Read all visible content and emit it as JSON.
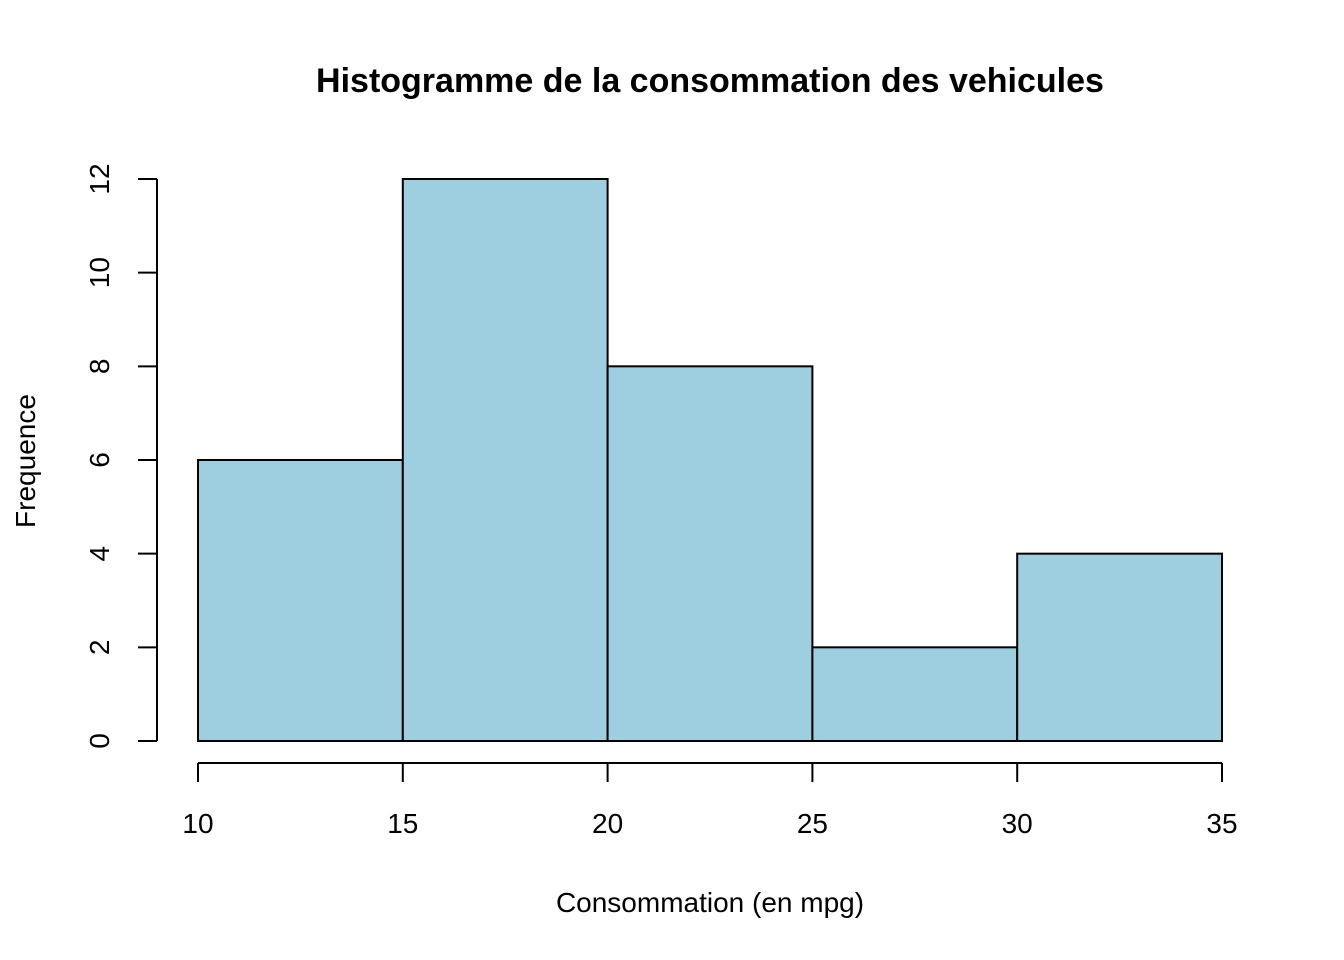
{
  "chart_data": {
    "type": "bar",
    "subtype": "histogram",
    "title": "Histogramme de la consommation des vehicules",
    "xlabel": "Consommation (en mpg)",
    "ylabel": "Frequence",
    "bins": [
      {
        "from": 10,
        "to": 15,
        "count": 6
      },
      {
        "from": 15,
        "to": 20,
        "count": 12
      },
      {
        "from": 20,
        "to": 25,
        "count": 8
      },
      {
        "from": 25,
        "to": 30,
        "count": 2
      },
      {
        "from": 30,
        "to": 35,
        "count": 4
      }
    ],
    "xlim": [
      10,
      35
    ],
    "ylim": [
      0,
      12
    ],
    "x_ticks": [
      10,
      15,
      20,
      25,
      30,
      35
    ],
    "y_ticks": [
      0,
      2,
      4,
      6,
      8,
      10,
      12
    ],
    "grid": false,
    "legend": "none",
    "bar_color": "#9ecfe0",
    "edge_color": "#000000"
  }
}
